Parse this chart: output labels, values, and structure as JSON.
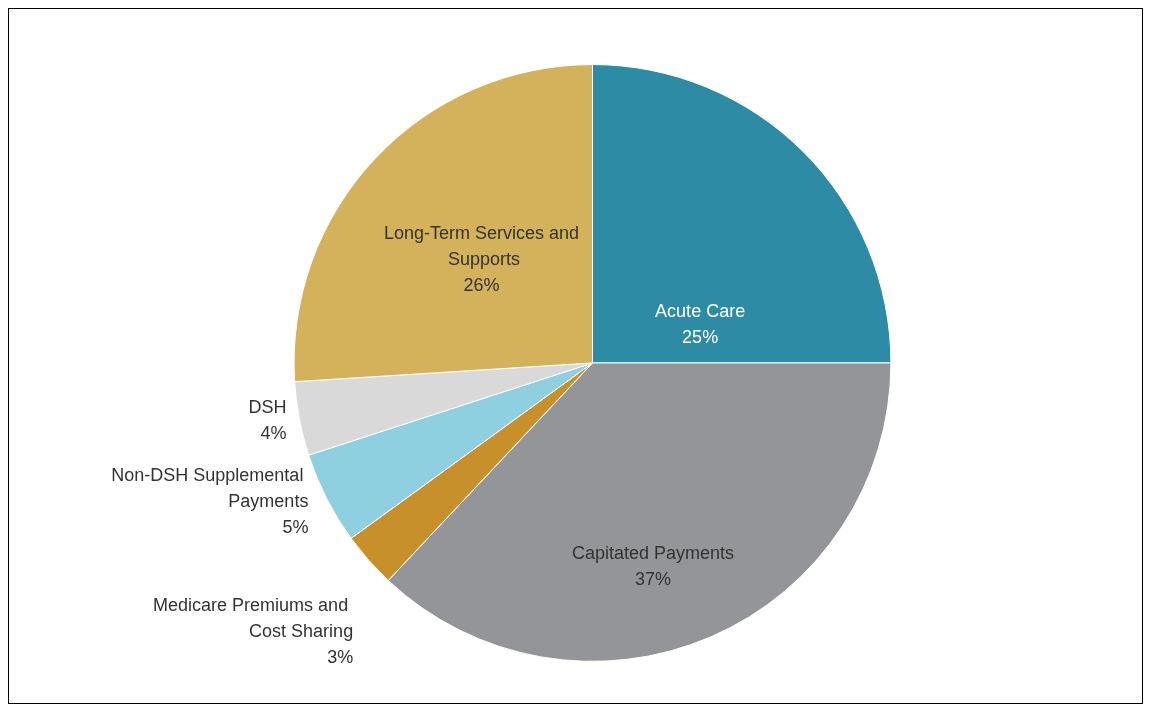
{
  "chart_data": {
    "type": "pie",
    "categories": [
      "Acute Care",
      "Capitated Payments",
      "Medicare Premiums and Cost Sharing",
      "Non-DSH Supplemental Payments",
      "DSH",
      "Long-Term Services and Supports"
    ],
    "values": [
      25,
      37,
      3,
      5,
      4,
      26
    ],
    "colors": [
      "#2e8ba6",
      "#939598",
      "#c8902a",
      "#8ecfe0",
      "#d9d9da",
      "#d4b25c"
    ],
    "value_labels": [
      "25%",
      "37%",
      "3%",
      "5%",
      "4%",
      "26%"
    ],
    "data_labels": true,
    "legend": false
  }
}
